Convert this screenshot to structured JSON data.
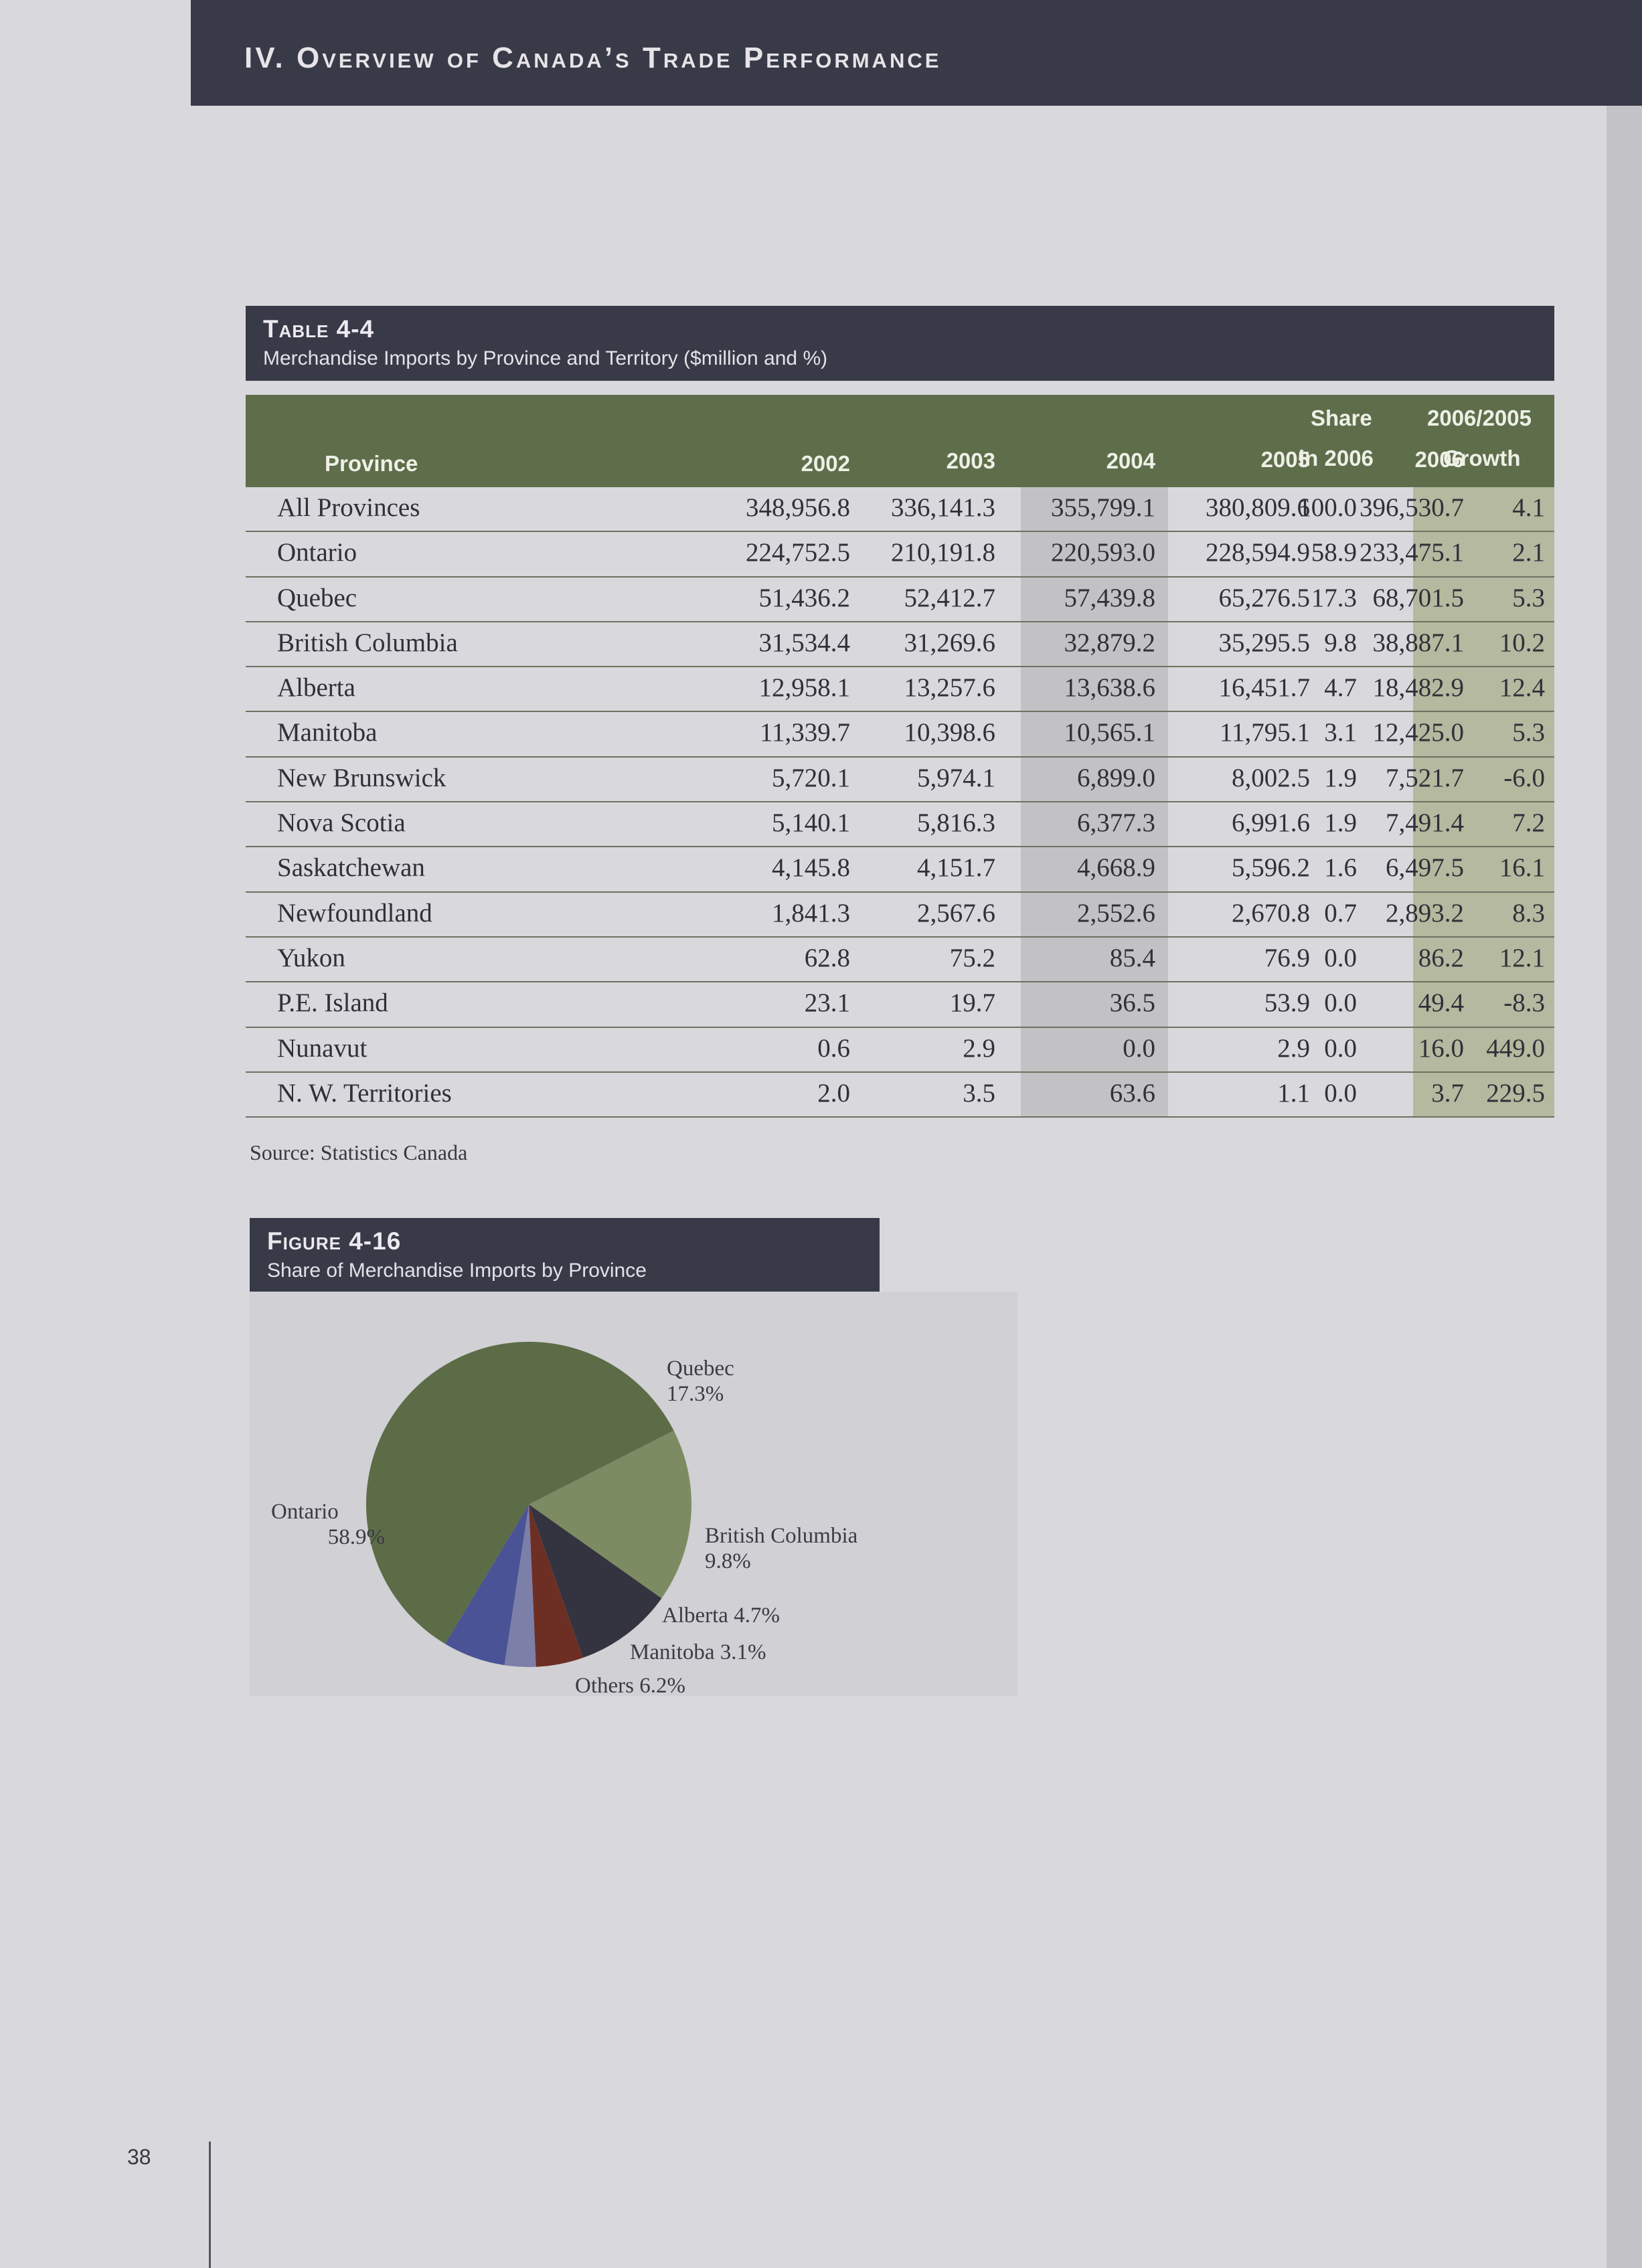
{
  "header": {
    "title": "IV. Overview of Canada’s Trade Performance"
  },
  "table": {
    "label": "Table 4-4",
    "caption": "Merchandise Imports by Province and Territory ($million and %)",
    "headers": {
      "province": "Province",
      "y2002": "2002",
      "y2003": "2003",
      "y2004": "2004",
      "y2005": "2005",
      "y2006": "2006",
      "share_line1": "Share",
      "share_line2": "in 2006",
      "growth_line1": "2006/2005",
      "growth_line2": "Growth"
    },
    "rows": [
      [
        "All Provinces",
        "348,956.8",
        "336,141.3",
        "355,799.1",
        "380,809.6",
        "396,530.7",
        "100.0",
        "4.1"
      ],
      [
        "Ontario",
        "224,752.5",
        "210,191.8",
        "220,593.0",
        "228,594.9",
        "233,475.1",
        "58.9",
        "2.1"
      ],
      [
        "Quebec",
        "51,436.2",
        "52,412.7",
        "57,439.8",
        "65,276.5",
        "68,701.5",
        "17.3",
        "5.3"
      ],
      [
        "British Columbia",
        "31,534.4",
        "31,269.6",
        "32,879.2",
        "35,295.5",
        "38,887.1",
        "9.8",
        "10.2"
      ],
      [
        "Alberta",
        "12,958.1",
        "13,257.6",
        "13,638.6",
        "16,451.7",
        "18,482.9",
        "4.7",
        "12.4"
      ],
      [
        "Manitoba",
        "11,339.7",
        "10,398.6",
        "10,565.1",
        "11,795.1",
        "12,425.0",
        "3.1",
        "5.3"
      ],
      [
        "New Brunswick",
        "5,720.1",
        "5,974.1",
        "6,899.0",
        "8,002.5",
        "7,521.7",
        "1.9",
        "-6.0"
      ],
      [
        "Nova Scotia",
        "5,140.1",
        "5,816.3",
        "6,377.3",
        "6,991.6",
        "7,491.4",
        "1.9",
        "7.2"
      ],
      [
        "Saskatchewan",
        "4,145.8",
        "4,151.7",
        "4,668.9",
        "5,596.2",
        "6,497.5",
        "1.6",
        "16.1"
      ],
      [
        "Newfoundland",
        "1,841.3",
        "2,567.6",
        "2,552.6",
        "2,670.8",
        "2,893.2",
        "0.7",
        "8.3"
      ],
      [
        "Yukon",
        "62.8",
        "75.2",
        "85.4",
        "76.9",
        "86.2",
        "0.0",
        "12.1"
      ],
      [
        "P.E. Island",
        "23.1",
        "19.7",
        "36.5",
        "53.9",
        "49.4",
        "0.0",
        "-8.3"
      ],
      [
        "Nunavut",
        "0.6",
        "2.9",
        "0.0",
        "2.9",
        "16.0",
        "0.0",
        "449.0"
      ],
      [
        "N. W. Territories",
        "2.0",
        "3.5",
        "63.6",
        "1.1",
        "3.7",
        "0.0",
        "229.5"
      ]
    ],
    "source": "Source: Statistics Canada"
  },
  "figure": {
    "label": "Figure 4-16",
    "caption": "Share of Merchandise Imports by Province"
  },
  "chart_data": {
    "type": "pie",
    "title": "Share of Merchandise Imports by Province",
    "slices": [
      {
        "label": "Quebec",
        "value": 17.3,
        "display": "17.3%",
        "color": "#7d8b62"
      },
      {
        "label": "British Columbia",
        "value": 9.8,
        "display": "9.8%",
        "color": "#33343f"
      },
      {
        "label": "Alberta",
        "value": 4.7,
        "display": "4.7%",
        "color": "#6d2f24"
      },
      {
        "label": "Manitoba",
        "value": 3.1,
        "display": "3.1%",
        "color": "#7c7fa8"
      },
      {
        "label": "Others",
        "value": 6.2,
        "display": "6.2%",
        "color": "#4a5395"
      },
      {
        "label": "Ontario",
        "value": 58.9,
        "display": "58.9%",
        "color": "#5b6c47"
      }
    ],
    "start_angle_deg": 63,
    "direction": "clockwise"
  },
  "page": {
    "number": "38"
  }
}
